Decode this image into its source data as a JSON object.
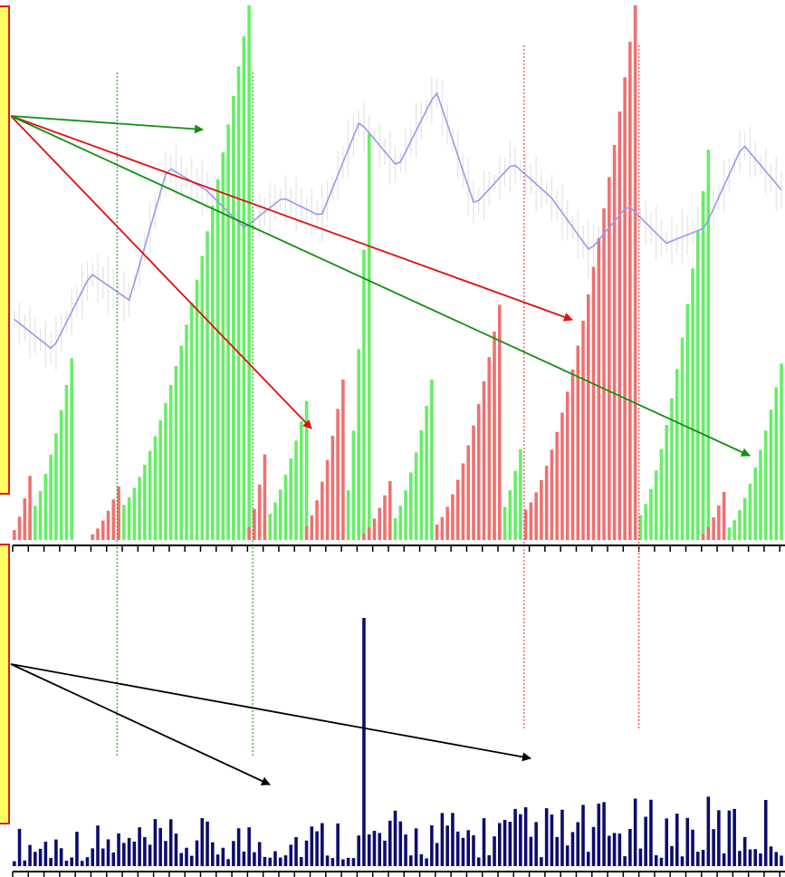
{
  "chart_data": [
    {
      "type": "bar",
      "panel": "momentum-histogram",
      "bar_count": 148,
      "colors": {
        "up": "#66ee66",
        "down": "#f07070",
        "price_line": "#9999ee",
        "price_bars": "#e4e4e4"
      },
      "series": [
        {
          "color": "up",
          "peaks": [
            {
              "from": 2,
              "to": 12,
              "peak": 0.34
            },
            {
              "from": 20,
              "to": 46,
              "peak": 1.0
            },
            {
              "from": 47,
              "to": 57,
              "peak": 0.26
            },
            {
              "from": 64,
              "to": 69,
              "peak": 0.76
            },
            {
              "from": 72,
              "to": 81,
              "peak": 0.3
            },
            {
              "from": 92,
              "to": 98,
              "peak": 0.17
            },
            {
              "from": 120,
              "to": 134,
              "peak": 0.73
            },
            {
              "from": 137,
              "to": 148,
              "peak": 0.33
            }
          ]
        },
        {
          "color": "down",
          "peaks": [
            {
              "from": 0,
              "to": 4,
              "peak": 0.12
            },
            {
              "from": 15,
              "to": 21,
              "peak": 0.1
            },
            {
              "from": 45,
              "to": 49,
              "peak": 0.16
            },
            {
              "from": 56,
              "to": 64,
              "peak": 0.3
            },
            {
              "from": 67,
              "to": 73,
              "peak": 0.11
            },
            {
              "from": 81,
              "to": 94,
              "peak": 0.44
            },
            {
              "from": 98,
              "to": 120,
              "peak": 1.0
            },
            {
              "from": 132,
              "to": 137,
              "peak": 0.09
            }
          ]
        }
      ],
      "price_line": [
        0.28,
        0.2,
        0.4,
        0.33,
        0.68,
        0.62,
        0.52,
        0.6,
        0.55,
        0.8,
        0.68,
        0.88,
        0.58,
        0.69,
        0.6,
        0.46,
        0.58,
        0.48,
        0.52,
        0.74,
        0.62
      ]
    },
    {
      "type": "bar",
      "panel": "volume",
      "bar_count": 148,
      "color": "#0c0c6e",
      "spike_index": 67,
      "spike_value": 1.0,
      "typical_max": 0.3
    }
  ],
  "annotations": {
    "dotted_markers": [
      {
        "index": 20,
        "color": "#22aa22"
      },
      {
        "index": 46,
        "color": "#22aa22"
      },
      {
        "index": 98,
        "color": "#ee4444"
      },
      {
        "index": 120,
        "color": "#ee4444"
      }
    ],
    "arrows": [
      {
        "panel": "top",
        "color": "#109010",
        "target": "peak-1"
      },
      {
        "panel": "top",
        "color": "#e01010",
        "target": "peak-2"
      },
      {
        "panel": "top",
        "color": "#e01010",
        "target": "peak-3"
      },
      {
        "panel": "top",
        "color": "#109010",
        "target": "peak-4"
      },
      {
        "panel": "bottom",
        "color": "#000000",
        "target": "volume-1"
      },
      {
        "panel": "bottom",
        "color": "#000000",
        "target": "volume-2"
      }
    ]
  }
}
